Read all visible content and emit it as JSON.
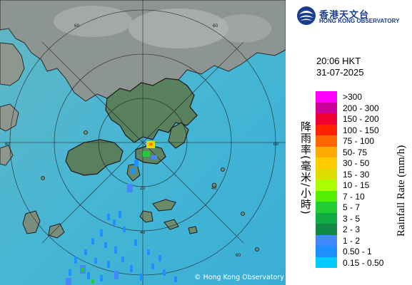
{
  "map": {
    "range_ring_labels": [
      "60",
      "60",
      "60",
      "40",
      "20",
      "40",
      "60",
      "60"
    ],
    "copyright": "© Hong Kong Observatory"
  },
  "header": {
    "org_name_zh": "香港天文台",
    "org_name_en": "HONG KONG OBSERVATORY",
    "time": "20:06 HKT",
    "date": "31-07-2025"
  },
  "legend": {
    "title_zh": "降雨率(毫米/小時)",
    "title_en": "Rainfall Rate (mm/h)",
    "items": [
      {
        "label": ">300",
        "color": "#ff00ff"
      },
      {
        "label": "200 - 300",
        "color": "#cc0099"
      },
      {
        "label": "150 - 200",
        "color": "#ee0033"
      },
      {
        "label": "100 - 150",
        "color": "#ff2200"
      },
      {
        "label": "75 - 100",
        "color": "#ff6600"
      },
      {
        "label": "50- 75",
        "color": "#ffaa00"
      },
      {
        "label": "30 - 50",
        "color": "#ffcc00"
      },
      {
        "label": "15 - 30",
        "color": "#dddd00"
      },
      {
        "label": "10 - 15",
        "color": "#aaff00"
      },
      {
        "label": "7 - 10",
        "color": "#55ee00"
      },
      {
        "label": "5 - 7",
        "color": "#22cc33"
      },
      {
        "label": "3 - 5",
        "color": "#11aa44"
      },
      {
        "label": "2 - 3",
        "color": "#118844"
      },
      {
        "label": "1 - 2",
        "color": "#4488ff"
      },
      {
        "label": "0.50 - 1",
        "color": "#1e90ff"
      },
      {
        "label": "0.15 - 0.50",
        "color": "#00ccff"
      }
    ]
  }
}
